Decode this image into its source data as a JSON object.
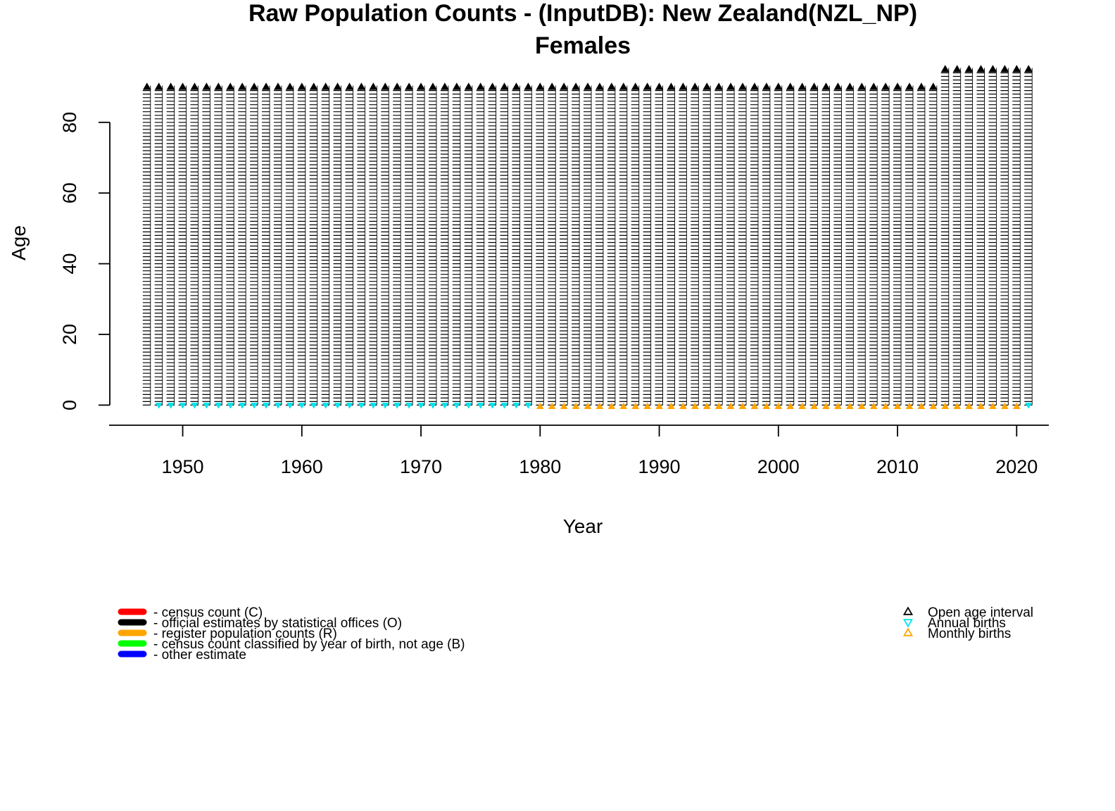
{
  "chart_data": {
    "type": "scatter",
    "title": "Raw Population Counts - (InputDB): New Zealand(NZL_NP)",
    "subtitle": "Females",
    "xlabel": "Year",
    "ylabel": "Age",
    "xlim": [
      1944,
      2024
    ],
    "ylim": [
      -3.7,
      94.7
    ],
    "x_ticks": [
      1950,
      1960,
      1970,
      1980,
      1990,
      2000,
      2010,
      2020
    ],
    "y_ticks": [
      0,
      20,
      40,
      60,
      80
    ],
    "years": {
      "start": 1947,
      "end": 2021
    },
    "age_step": 1,
    "open_age": [
      {
        "from": 1947,
        "to": 2013,
        "age": 90
      },
      {
        "from": 2014,
        "to": 2021,
        "age": 95
      }
    ],
    "annual_births": {
      "from": 1948,
      "to": 2021
    },
    "monthly_births": {
      "from": 1980,
      "to": 2020
    },
    "series_color": "#000000",
    "legend_left": [
      {
        "label": "- census count (C)",
        "color": "#ff0000"
      },
      {
        "label": "- official estimates by statistical offices (O)",
        "color": "#000000"
      },
      {
        "label": "- register population counts (R)",
        "color": "#ffa500"
      },
      {
        "label": "- census count classified by year of birth, not age (B)",
        "color": "#00ff00"
      },
      {
        "label": "- other estimate",
        "color": "#0000ff"
      }
    ],
    "legend_right": [
      {
        "label": "Open age interval",
        "symbol": "triangle-up",
        "color": "#000000"
      },
      {
        "label": "Annual births",
        "symbol": "triangle-down",
        "color": "#00e5ee"
      },
      {
        "label": "Monthly births",
        "symbol": "triangle-up",
        "color": "#ffa500"
      }
    ]
  }
}
